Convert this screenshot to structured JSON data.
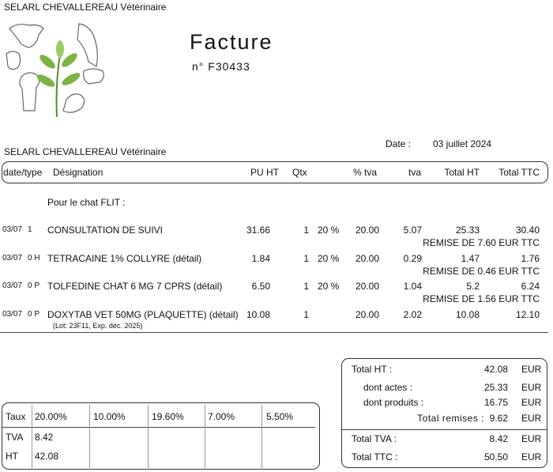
{
  "header": {
    "clinic": "SELARL CHEVALLEREAU Vétérinaire",
    "title": "Facture",
    "number": "n° F30433",
    "clinic_repeat": "SELARL CHEVALLEREAU Vétérinaire",
    "date_label": "Date :",
    "date": "03 juillet 2024"
  },
  "table": {
    "columns": [
      "date/type",
      "Désignation",
      "PU HT",
      "Qtx",
      "% tva",
      "tva",
      "Total HT",
      "Total TTC"
    ],
    "intro": "Pour le chat FLIT :",
    "rows": [
      {
        "date": "03/07",
        "type": "1",
        "designation": "CONSULTATION DE SUIVI",
        "pu_ht": "31.66",
        "qty": "1",
        "pct": "20 %",
        "tva_rate": "20.00",
        "tva": "5.07",
        "total_ht": "25.33",
        "total_ttc": "30.40",
        "note": "REMISE DE 7.60 EUR TTC"
      },
      {
        "date": "03/07",
        "type": "0 H",
        "designation": "TETRACAINE 1% COLLYRE (détail)",
        "pu_ht": "1.84",
        "qty": "1",
        "pct": "20 %",
        "tva_rate": "20.00",
        "tva": "0.29",
        "total_ht": "1.47",
        "total_ttc": "1.76",
        "note": "REMISE DE 0.46 EUR TTC"
      },
      {
        "date": "03/07",
        "type": "0 P",
        "designation": "TOLFEDINE CHAT 6 MG  7 CPRS  (détail)",
        "pu_ht": "6.50",
        "qty": "1",
        "pct": "20 %",
        "tva_rate": "20.00",
        "tva": "1.04",
        "total_ht": "5.2",
        "total_ttc": "6.24",
        "note": "REMISE DE 1.56 EUR TTC"
      },
      {
        "date": "03/07",
        "type": "0 P",
        "designation": "DOXYTAB VET 50MG (PLAQUETTE) (détail)",
        "pu_ht": "10.08",
        "qty": "1",
        "tva_rate": "20.00",
        "tva": "2.02",
        "total_ht": "10.08",
        "total_ttc": "12.10",
        "lot": "(Lot: 23F11, Exp. déc. 2025)"
      }
    ]
  },
  "tax_table": {
    "header": [
      "Taux",
      "20.00%",
      "10.00%",
      "19.60%",
      "7.00%",
      "5.50%"
    ],
    "tva": [
      "TVA",
      "8.42"
    ],
    "ht": [
      "HT",
      "42.08"
    ]
  },
  "totals": {
    "currency": "EUR",
    "total_ht": {
      "label": "Total HT :",
      "value": "42.08"
    },
    "actes": {
      "label": "dont actes :",
      "value": "25.33"
    },
    "produits": {
      "label": "dont produits :",
      "value": "16.75"
    },
    "remises": {
      "label": "Total remises :",
      "value": "9.62"
    },
    "total_tva": {
      "label": "Total TVA :",
      "value": "8.42"
    },
    "total_ttc": {
      "label": "Total TTC :",
      "value": "50.50"
    }
  }
}
